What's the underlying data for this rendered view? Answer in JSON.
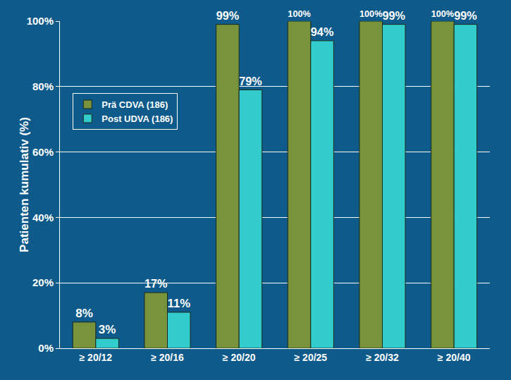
{
  "chart_data": {
    "type": "bar",
    "y_label": "Patienten kumulativ (%)",
    "categories": [
      "≥ 20/12",
      "≥ 20/16",
      "≥ 20/20",
      "≥ 20/25",
      "≥ 20/32",
      "≥ 20/40"
    ],
    "series": [
      {
        "name": "Prä CDVA (186)",
        "color": "#77933c",
        "values": [
          8,
          17,
          99,
          100,
          100,
          100
        ],
        "value_labels": [
          "8%",
          "17%",
          "99%",
          "100%",
          "100%",
          "100%"
        ]
      },
      {
        "name": "Post UDVA (186)",
        "color": "#33cccc",
        "values": [
          3,
          11,
          79,
          94,
          99,
          99
        ],
        "value_labels": [
          "3%",
          "11%",
          "79%",
          "94%",
          "99%",
          "99%"
        ]
      }
    ],
    "ylim": [
      0,
      100
    ],
    "yticks": [
      {
        "value": 0,
        "label": "0%"
      },
      {
        "value": 20,
        "label": "20%"
      },
      {
        "value": 40,
        "label": "40%"
      },
      {
        "value": 60,
        "label": "60%"
      },
      {
        "value": 80,
        "label": "80%"
      },
      {
        "value": 100,
        "label": "100%"
      }
    ],
    "grid": true,
    "legend": "upper left",
    "data_labels": true
  }
}
